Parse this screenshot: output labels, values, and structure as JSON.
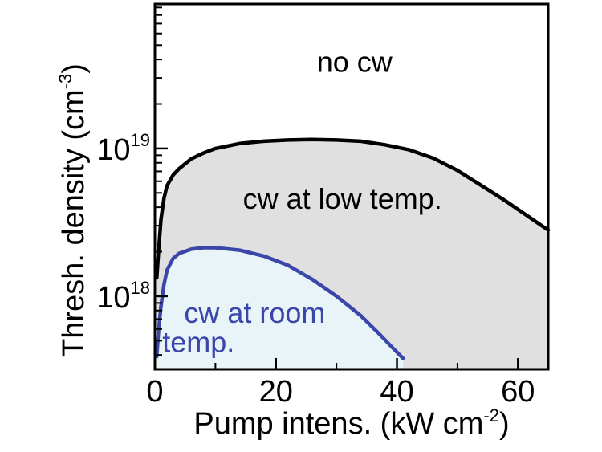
{
  "chart_data": {
    "type": "area",
    "title": "",
    "xlabel": "Pump intens. (kW cm",
    "xlabel_sup": "-2",
    "xlabel_close": ")",
    "ylabel": "Thresh. density (cm",
    "ylabel_sup": "-3",
    "ylabel_close": ")",
    "x_scale": "linear",
    "y_scale": "log",
    "xlim": [
      0,
      65
    ],
    "ylim": [
      3.2e+17,
      9.5e+19
    ],
    "grid": false,
    "x_ticks": [
      {
        "value": 0,
        "label": "0"
      },
      {
        "value": 20,
        "label": "20"
      },
      {
        "value": 40,
        "label": "40"
      },
      {
        "value": 60,
        "label": "60"
      }
    ],
    "x_minor_ticks": [
      10,
      30,
      50
    ],
    "y_ticks": [
      {
        "value": 1e+18,
        "base": "10",
        "exp": "18"
      },
      {
        "value": 1e+19,
        "base": "10",
        "exp": "19"
      }
    ],
    "y_minor_ticks": [
      4e+17,
      5e+17,
      6e+17,
      7e+17,
      8e+17,
      9e+17,
      2e+18,
      3e+18,
      4e+18,
      5e+18,
      6e+18,
      7e+18,
      8e+18,
      9e+18,
      2e+19,
      3e+19,
      4e+19,
      5e+19,
      6e+19,
      7e+19,
      8e+19,
      9e+19
    ],
    "series": [
      {
        "region": "cw at low temp.",
        "color": "#000000",
        "fill": "#e0e0e0",
        "points": [
          [
            0.3,
            1.33e+18
          ],
          [
            0.6,
            2e+18
          ],
          [
            1.0,
            3.3e+18
          ],
          [
            1.5,
            4.6e+18
          ],
          [
            2.0,
            5.6e+18
          ],
          [
            3.0,
            6.6e+18
          ],
          [
            4.0,
            7.3e+18
          ],
          [
            6.0,
            8.5e+18
          ],
          [
            8.0,
            9.3e+18
          ],
          [
            10.0,
            1e+19
          ],
          [
            14.0,
            1.08e+19
          ],
          [
            18.0,
            1.12e+19
          ],
          [
            22.0,
            1.14e+19
          ],
          [
            26.0,
            1.15e+19
          ],
          [
            30.0,
            1.14e+19
          ],
          [
            34.0,
            1.12e+19
          ],
          [
            38.0,
            1.06e+19
          ],
          [
            42.0,
            9.8e+18
          ],
          [
            46.0,
            8.6e+18
          ],
          [
            50.0,
            7.1e+18
          ],
          [
            54.0,
            5.6e+18
          ],
          [
            58.0,
            4.4e+18
          ],
          [
            62.0,
            3.4e+18
          ],
          [
            65.0,
            2.8e+18
          ]
        ]
      },
      {
        "region": "cw at room temp.",
        "color": "#3a46a8",
        "fill": "#e8f4f8",
        "points": [
          [
            0.3,
            3.9e+17
          ],
          [
            0.6,
            5.8e+17
          ],
          [
            1.0,
            8.5e+17
          ],
          [
            1.5,
            1.2e+18
          ],
          [
            2.0,
            1.5e+18
          ],
          [
            3.0,
            1.8e+18
          ],
          [
            4.0,
            1.95e+18
          ],
          [
            6.0,
            2.08e+18
          ],
          [
            8.0,
            2.13e+18
          ],
          [
            10.0,
            2.13e+18
          ],
          [
            14.0,
            2.05e+18
          ],
          [
            18.0,
            1.87e+18
          ],
          [
            22.0,
            1.62e+18
          ],
          [
            26.0,
            1.3e+18
          ],
          [
            30.0,
            1e+18
          ],
          [
            34.0,
            7.4e+17
          ],
          [
            37.0,
            5.6e+17
          ],
          [
            39.0,
            4.6e+17
          ],
          [
            41.0,
            3.8e+17
          ]
        ]
      }
    ],
    "annotations": [
      {
        "name": "no-cw-label",
        "text": "no cw",
        "x": 33,
        "y": 3.3e+19
      },
      {
        "name": "cw-low-temp-label",
        "text": "cw at low temp.",
        "x": 31,
        "y": 3.9e+18
      },
      {
        "name": "cw-room-temp-label-line1",
        "text": "cw at room",
        "x": 16.5,
        "y": 6.6e+17
      },
      {
        "name": "cw-room-temp-label-line2",
        "text": "temp.",
        "x": 7.2,
        "y": 4.2e+17
      }
    ]
  }
}
